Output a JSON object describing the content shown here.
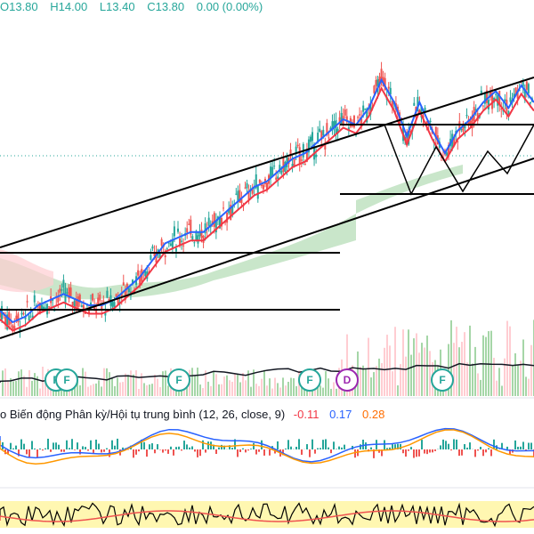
{
  "legend": {
    "open": "O13.80",
    "high": "H14.00",
    "low": "L13.40",
    "close": "C13.80",
    "change": "0.00 (0.00%)"
  },
  "macd_legend": {
    "text": "o Biến động Phân kỳ/Hội tụ trung bình (12, 26, close, 9)",
    "hist": "-0.11",
    "macd": "0.17",
    "signal": "0.28"
  },
  "markers": [
    {
      "label": "F",
      "type": "F"
    },
    {
      "label": "F",
      "type": "F"
    },
    {
      "label": "F",
      "type": "F"
    },
    {
      "label": "F",
      "type": "F"
    },
    {
      "label": "D",
      "type": "D"
    },
    {
      "label": "F",
      "type": "F"
    }
  ],
  "colors": {
    "up": "#26a69a",
    "down": "#ef5350",
    "ma_fast": "#2962ff",
    "ma_slow": "#f23645",
    "cloud_green": "#a5d6a7",
    "cloud_red": "#ffcdd2",
    "macd_line": "#2962ff",
    "signal_line": "#ff9800",
    "rsi_band": "#fff59d",
    "volume_ma": "#131722"
  },
  "chart_data": {
    "type": "line",
    "title": "",
    "series": [
      {
        "name": "",
        "values": [
          12.2,
          12.0,
          12.1,
          12.3,
          12.4,
          12.5,
          12.4,
          12.3,
          12.3,
          12.4,
          12.6,
          12.8,
          13.1,
          13.4,
          13.5,
          13.6,
          13.6,
          13.8,
          14.0,
          14.2,
          14.4,
          14.5,
          14.7,
          14.9,
          15.0,
          15.2,
          15.4,
          15.6,
          15.5,
          15.8,
          16.3,
          15.9,
          15.3,
          15.9,
          15.4,
          15.0,
          15.4,
          15.6,
          15.9,
          16.1,
          15.8,
          16.2,
          15.9
        ]
      }
    ]
  }
}
